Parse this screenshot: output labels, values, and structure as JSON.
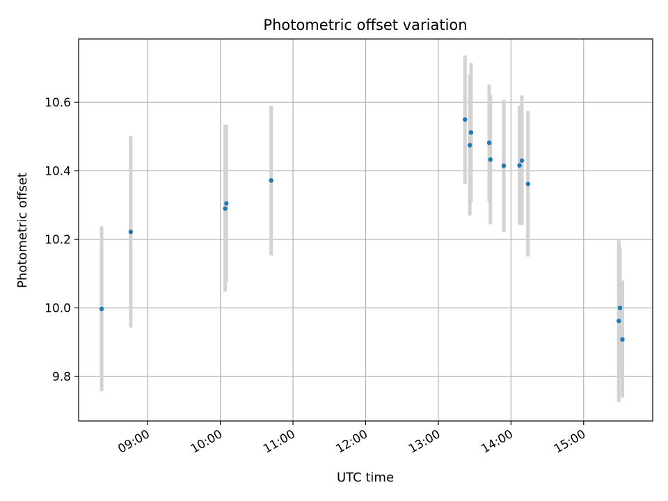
{
  "chart_data": {
    "type": "scatter",
    "title": "Photometric offset variation",
    "xlabel": "UTC time",
    "ylabel": "Photometric offset",
    "xlim": [
      "08:03",
      "15:57"
    ],
    "ylim": [
      9.67,
      10.785
    ],
    "x_ticks": [
      "09:00",
      "10:00",
      "11:00",
      "12:00",
      "13:00",
      "14:00",
      "15:00"
    ],
    "y_ticks": [
      "9.8",
      "10.0",
      "10.2",
      "10.4",
      "10.6"
    ],
    "grid": true,
    "colors": {
      "point": "#1f77b4",
      "errorbar": "#d3d3d3",
      "grid": "#b0b0b0"
    },
    "points": [
      {
        "x": "08:22",
        "y": 9.997,
        "y_low": 9.757,
        "y_high": 10.238
      },
      {
        "x": "08:46",
        "y": 10.222,
        "y_low": 9.943,
        "y_high": 10.502
      },
      {
        "x": "10:04",
        "y": 10.29,
        "y_low": 10.048,
        "y_high": 10.533
      },
      {
        "x": "10:05",
        "y": 10.305,
        "y_low": 10.075,
        "y_high": 10.535
      },
      {
        "x": "10:42",
        "y": 10.372,
        "y_low": 10.153,
        "y_high": 10.59
      },
      {
        "x": "13:22",
        "y": 10.55,
        "y_low": 10.362,
        "y_high": 10.737
      },
      {
        "x": "13:26",
        "y": 10.475,
        "y_low": 10.27,
        "y_high": 10.68
      },
      {
        "x": "13:27",
        "y": 10.512,
        "y_low": 10.309,
        "y_high": 10.715
      },
      {
        "x": "13:42",
        "y": 10.482,
        "y_low": 10.31,
        "y_high": 10.652
      },
      {
        "x": "13:43",
        "y": 10.433,
        "y_low": 10.244,
        "y_high": 10.622
      },
      {
        "x": "13:54",
        "y": 10.415,
        "y_low": 10.222,
        "y_high": 10.607
      },
      {
        "x": "14:07",
        "y": 10.416,
        "y_low": 10.243,
        "y_high": 10.59
      },
      {
        "x": "14:09",
        "y": 10.43,
        "y_low": 10.242,
        "y_high": 10.62
      },
      {
        "x": "14:14",
        "y": 10.362,
        "y_low": 10.15,
        "y_high": 10.575
      },
      {
        "x": "15:29",
        "y": 9.962,
        "y_low": 9.725,
        "y_high": 10.198
      },
      {
        "x": "15:30",
        "y": 10.0,
        "y_low": 9.822,
        "y_high": 10.178
      },
      {
        "x": "15:32",
        "y": 9.908,
        "y_low": 9.738,
        "y_high": 10.08
      }
    ]
  }
}
